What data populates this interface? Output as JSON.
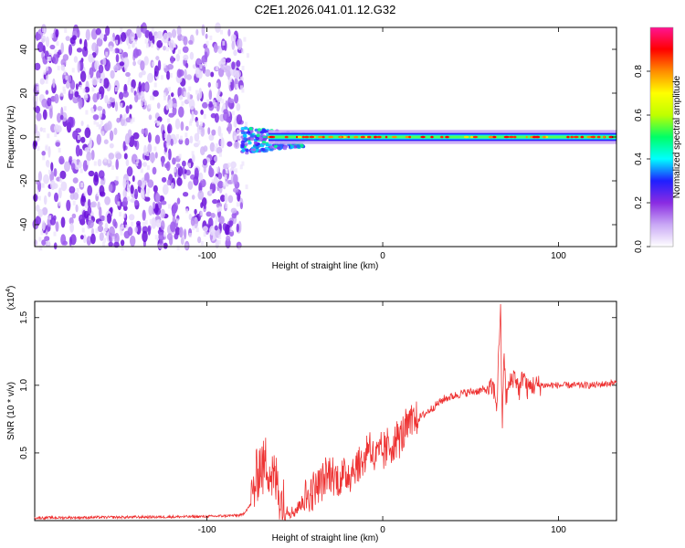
{
  "title": "C2E1.2026.041.01.12.G32",
  "chart_data": [
    {
      "type": "heatmap",
      "title": "C2E1.2026.041.01.12.G32",
      "xlabel": "Height of straight line (km)",
      "ylabel": "Frequency (Hz)",
      "xlim": [
        -198,
        133
      ],
      "ylim": [
        -50,
        50
      ],
      "x_ticks": [
        -100,
        0,
        100
      ],
      "x_tick_labels": [
        "-100",
        "0",
        "100"
      ],
      "y_ticks": [
        -40,
        -20,
        0,
        20,
        40
      ],
      "y_tick_labels": [
        "-40",
        "-20",
        "0",
        "20",
        "40"
      ],
      "colorbar": {
        "label": "Normalized spectral amplitude",
        "range": [
          0,
          1
        ],
        "ticks": [
          0.0,
          0.2,
          0.4,
          0.6,
          0.8
        ],
        "tick_labels": [
          "0.0",
          "0.2",
          "0.4",
          "0.6",
          "0.8"
        ],
        "colors": [
          "#ffffff",
          "#c9a8f5",
          "#8a2be2",
          "#1f1fff",
          "#00ffff",
          "#00ff66",
          "#bfff00",
          "#ffff00",
          "#ff8c00",
          "#ff0000",
          "#ff1493"
        ]
      },
      "regions": [
        {
          "name": "noise",
          "x_range": [
            -198,
            -80
          ],
          "f_range": [
            -50,
            50
          ],
          "amplitude": 0.2
        },
        {
          "name": "transition",
          "x_range": [
            -80,
            -45
          ],
          "f_center": 0,
          "f_halfwidth": 6,
          "amplitude": 0.45
        },
        {
          "name": "carrier",
          "x_range": [
            -45,
            133
          ],
          "f_center": 0,
          "f_halfwidth": 2,
          "amplitude": 0.9
        }
      ]
    },
    {
      "type": "line",
      "xlabel": "Height of straight line (km)",
      "ylabel": "SNR (10 * v/v)",
      "y_scale_label": "(x10^4)",
      "xlim": [
        -198,
        133
      ],
      "ylim": [
        0,
        1.62
      ],
      "x_ticks": [
        -100,
        0,
        100
      ],
      "x_tick_labels": [
        "-100",
        "0",
        "100"
      ],
      "y_ticks": [
        0.5,
        1.0,
        1.5
      ],
      "y_tick_labels": [
        "0.5",
        "1.0",
        "1.5"
      ],
      "color": "#ee3333",
      "series": [
        {
          "name": "SNR",
          "x": [
            -198,
            -150,
            -100,
            -80,
            -75,
            -72,
            -70,
            -68,
            -66,
            -64,
            -62,
            -60,
            -58,
            -56,
            -54,
            -52,
            -50,
            -48,
            -45,
            -40,
            -35,
            -30,
            -25,
            -20,
            -15,
            -10,
            -8,
            -5,
            0,
            5,
            10,
            15,
            20,
            25,
            30,
            35,
            40,
            45,
            50,
            55,
            60,
            63,
            65,
            66,
            67,
            68,
            69,
            70,
            72,
            75,
            78,
            80,
            82,
            85,
            90,
            100,
            110,
            120,
            133
          ],
          "y": [
            0.02,
            0.025,
            0.03,
            0.04,
            0.12,
            0.3,
            0.42,
            0.38,
            0.45,
            0.36,
            0.3,
            0.28,
            0.15,
            0.1,
            0.08,
            0.06,
            0.07,
            0.1,
            0.15,
            0.22,
            0.28,
            0.35,
            0.3,
            0.35,
            0.4,
            0.45,
            0.6,
            0.45,
            0.5,
            0.56,
            0.62,
            0.7,
            0.75,
            0.8,
            0.85,
            0.9,
            0.92,
            0.94,
            0.95,
            0.96,
            0.97,
            0.98,
            0.85,
            1.25,
            1.6,
            0.65,
            1.3,
            0.9,
            1.0,
            1.08,
            0.95,
            1.1,
            0.97,
            1.0,
            1.0,
            1.0,
            1.0,
            1.0,
            1.02
          ]
        }
      ]
    }
  ]
}
